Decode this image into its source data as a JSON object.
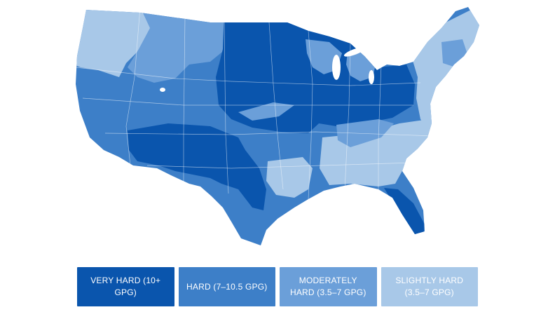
{
  "legend": {
    "items": [
      {
        "label": "VERY HARD (10+ GPG)",
        "color": "#0a55ad"
      },
      {
        "label": "HARD (7–10.5 GPG)",
        "color": "#3d7fc8"
      },
      {
        "label": "MODERATELY HARD (3.5–7 GPG)",
        "color": "#6b9fd9"
      },
      {
        "label": "SLIGHTLY HARD (3.5–7 GPG)",
        "color": "#a8c8e8"
      }
    ]
  },
  "map": {
    "colors": {
      "very_hard": "#0a55ad",
      "hard": "#3d7fc8",
      "moderately_hard": "#6b9fd9",
      "slightly_hard": "#a8c8e8"
    }
  }
}
